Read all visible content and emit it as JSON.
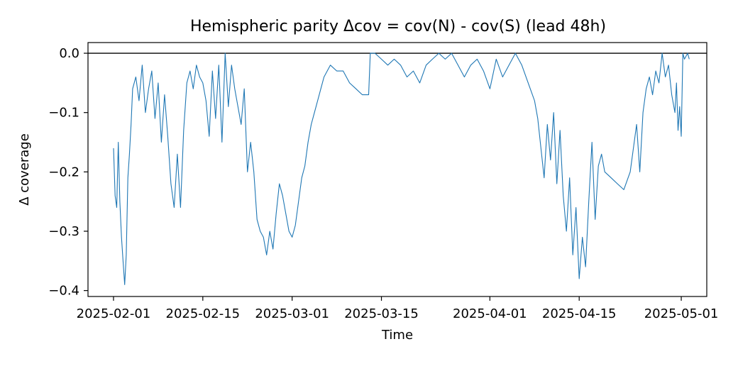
{
  "chart_data": {
    "type": "line",
    "title": "Hemispheric parity Δcov = cov(N) - cov(S)  (lead 48h)",
    "xlabel": "Time",
    "ylabel": "Δ coverage",
    "xlim": [
      "2025-01-28",
      "2025-05-05"
    ],
    "ylim": [
      -0.41,
      0.018
    ],
    "x_ticks": [
      {
        "date": "2025-02-01",
        "label": "2025-02-01"
      },
      {
        "date": "2025-02-15",
        "label": "2025-02-15"
      },
      {
        "date": "2025-03-01",
        "label": "2025-03-01"
      },
      {
        "date": "2025-03-15",
        "label": "2025-03-15"
      },
      {
        "date": "2025-04-01",
        "label": "2025-04-01"
      },
      {
        "date": "2025-04-15",
        "label": "2025-04-15"
      },
      {
        "date": "2025-05-01",
        "label": "2025-05-01"
      }
    ],
    "y_ticks": [
      {
        "value": 0.0,
        "label": "0.0"
      },
      {
        "value": -0.1,
        "label": "−0.1"
      },
      {
        "value": -0.2,
        "label": "−0.2"
      },
      {
        "value": -0.3,
        "label": "−0.3"
      },
      {
        "value": -0.4,
        "label": "−0.4"
      }
    ],
    "reference_line": {
      "y": 0.0,
      "color": "#000000"
    },
    "grid": false,
    "series": [
      {
        "color": "#1f77b4",
        "points": [
          [
            "2025-02-01T00:00",
            -0.16
          ],
          [
            "2025-02-01T06:00",
            -0.24
          ],
          [
            "2025-02-01T12:00",
            -0.26
          ],
          [
            "2025-02-01T18:00",
            -0.15
          ],
          [
            "2025-02-02T00:00",
            -0.25
          ],
          [
            "2025-02-02T06:00",
            -0.31
          ],
          [
            "2025-02-02T12:00",
            -0.35
          ],
          [
            "2025-02-02T18:00",
            -0.39
          ],
          [
            "2025-02-03T00:00",
            -0.34
          ],
          [
            "2025-02-03T06:00",
            -0.21
          ],
          [
            "2025-02-03T12:00",
            -0.17
          ],
          [
            "2025-02-03T18:00",
            -0.12
          ],
          [
            "2025-02-04T00:00",
            -0.06
          ],
          [
            "2025-02-04T12:00",
            -0.04
          ],
          [
            "2025-02-05T00:00",
            -0.08
          ],
          [
            "2025-02-05T12:00",
            -0.02
          ],
          [
            "2025-02-06T00:00",
            -0.1
          ],
          [
            "2025-02-06T12:00",
            -0.06
          ],
          [
            "2025-02-07T00:00",
            -0.03
          ],
          [
            "2025-02-07T12:00",
            -0.11
          ],
          [
            "2025-02-08T00:00",
            -0.05
          ],
          [
            "2025-02-08T12:00",
            -0.15
          ],
          [
            "2025-02-09T00:00",
            -0.07
          ],
          [
            "2025-02-09T12:00",
            -0.14
          ],
          [
            "2025-02-10T00:00",
            -0.22
          ],
          [
            "2025-02-10T12:00",
            -0.26
          ],
          [
            "2025-02-11T00:00",
            -0.17
          ],
          [
            "2025-02-11T12:00",
            -0.26
          ],
          [
            "2025-02-12T00:00",
            -0.13
          ],
          [
            "2025-02-12T12:00",
            -0.05
          ],
          [
            "2025-02-13T00:00",
            -0.03
          ],
          [
            "2025-02-13T12:00",
            -0.06
          ],
          [
            "2025-02-14T00:00",
            -0.02
          ],
          [
            "2025-02-14T12:00",
            -0.04
          ],
          [
            "2025-02-15T00:00",
            -0.05
          ],
          [
            "2025-02-15T12:00",
            -0.08
          ],
          [
            "2025-02-16T00:00",
            -0.14
          ],
          [
            "2025-02-16T12:00",
            -0.03
          ],
          [
            "2025-02-17T00:00",
            -0.11
          ],
          [
            "2025-02-17T12:00",
            -0.02
          ],
          [
            "2025-02-18T00:00",
            -0.15
          ],
          [
            "2025-02-18T12:00",
            -0.0
          ],
          [
            "2025-02-19T00:00",
            -0.09
          ],
          [
            "2025-02-19T12:00",
            -0.02
          ],
          [
            "2025-02-20T00:00",
            -0.06
          ],
          [
            "2025-02-20T12:00",
            -0.09
          ],
          [
            "2025-02-21T00:00",
            -0.12
          ],
          [
            "2025-02-21T12:00",
            -0.06
          ],
          [
            "2025-02-22T00:00",
            -0.2
          ],
          [
            "2025-02-22T12:00",
            -0.15
          ],
          [
            "2025-02-23T00:00",
            -0.2
          ],
          [
            "2025-02-23T12:00",
            -0.28
          ],
          [
            "2025-02-24T00:00",
            -0.3
          ],
          [
            "2025-02-24T12:00",
            -0.31
          ],
          [
            "2025-02-25T00:00",
            -0.34
          ],
          [
            "2025-02-25T12:00",
            -0.3
          ],
          [
            "2025-02-26T00:00",
            -0.33
          ],
          [
            "2025-02-26T12:00",
            -0.27
          ],
          [
            "2025-02-27T00:00",
            -0.22
          ],
          [
            "2025-02-27T12:00",
            -0.24
          ],
          [
            "2025-02-28T00:00",
            -0.27
          ],
          [
            "2025-02-28T12:00",
            -0.3
          ],
          [
            "2025-03-01T00:00",
            -0.31
          ],
          [
            "2025-03-01T12:00",
            -0.29
          ],
          [
            "2025-03-02T00:00",
            -0.25
          ],
          [
            "2025-03-02T12:00",
            -0.21
          ],
          [
            "2025-03-03T00:00",
            -0.19
          ],
          [
            "2025-03-03T12:00",
            -0.15
          ],
          [
            "2025-03-04T00:00",
            -0.12
          ],
          [
            "2025-03-04T12:00",
            -0.1
          ],
          [
            "2025-03-05T00:00",
            -0.08
          ],
          [
            "2025-03-05T12:00",
            -0.06
          ],
          [
            "2025-03-06T00:00",
            -0.04
          ],
          [
            "2025-03-07T00:00",
            -0.02
          ],
          [
            "2025-03-08T00:00",
            -0.03
          ],
          [
            "2025-03-09T00:00",
            -0.03
          ],
          [
            "2025-03-10T00:00",
            -0.05
          ],
          [
            "2025-03-11T00:00",
            -0.06
          ],
          [
            "2025-03-12T00:00",
            -0.07
          ],
          [
            "2025-03-13T00:00",
            -0.07
          ],
          [
            "2025-03-13T06:00",
            0.0
          ],
          [
            "2025-03-14T00:00",
            -0.0
          ],
          [
            "2025-03-15T00:00",
            -0.01
          ],
          [
            "2025-03-16T00:00",
            -0.02
          ],
          [
            "2025-03-17T00:00",
            -0.01
          ],
          [
            "2025-03-18T00:00",
            -0.02
          ],
          [
            "2025-03-19T00:00",
            -0.04
          ],
          [
            "2025-03-20T00:00",
            -0.03
          ],
          [
            "2025-03-21T00:00",
            -0.05
          ],
          [
            "2025-03-22T00:00",
            -0.02
          ],
          [
            "2025-03-23T00:00",
            -0.01
          ],
          [
            "2025-03-24T00:00",
            -0.0
          ],
          [
            "2025-03-25T00:00",
            -0.01
          ],
          [
            "2025-03-26T00:00",
            -0.0
          ],
          [
            "2025-03-27T00:00",
            -0.02
          ],
          [
            "2025-03-28T00:00",
            -0.04
          ],
          [
            "2025-03-29T00:00",
            -0.02
          ],
          [
            "2025-03-30T00:00",
            -0.01
          ],
          [
            "2025-03-31T00:00",
            -0.03
          ],
          [
            "2025-04-01T00:00",
            -0.06
          ],
          [
            "2025-04-02T00:00",
            -0.01
          ],
          [
            "2025-04-03T00:00",
            -0.04
          ],
          [
            "2025-04-04T00:00",
            -0.02
          ],
          [
            "2025-04-05T00:00",
            -0.0
          ],
          [
            "2025-04-06T00:00",
            -0.02
          ],
          [
            "2025-04-07T00:00",
            -0.05
          ],
          [
            "2025-04-08T00:00",
            -0.08
          ],
          [
            "2025-04-08T12:00",
            -0.11
          ],
          [
            "2025-04-09T00:00",
            -0.16
          ],
          [
            "2025-04-09T12:00",
            -0.21
          ],
          [
            "2025-04-10T00:00",
            -0.12
          ],
          [
            "2025-04-10T12:00",
            -0.18
          ],
          [
            "2025-04-11T00:00",
            -0.1
          ],
          [
            "2025-04-11T12:00",
            -0.22
          ],
          [
            "2025-04-12T00:00",
            -0.13
          ],
          [
            "2025-04-12T12:00",
            -0.24
          ],
          [
            "2025-04-13T00:00",
            -0.3
          ],
          [
            "2025-04-13T12:00",
            -0.21
          ],
          [
            "2025-04-14T00:00",
            -0.34
          ],
          [
            "2025-04-14T12:00",
            -0.26
          ],
          [
            "2025-04-15T00:00",
            -0.38
          ],
          [
            "2025-04-15T12:00",
            -0.31
          ],
          [
            "2025-04-16T00:00",
            -0.36
          ],
          [
            "2025-04-16T12:00",
            -0.25
          ],
          [
            "2025-04-17T00:00",
            -0.15
          ],
          [
            "2025-04-17T12:00",
            -0.28
          ],
          [
            "2025-04-18T00:00",
            -0.19
          ],
          [
            "2025-04-18T12:00",
            -0.17
          ],
          [
            "2025-04-19T00:00",
            -0.2
          ],
          [
            "2025-04-20T00:00",
            -0.21
          ],
          [
            "2025-04-21T00:00",
            -0.22
          ],
          [
            "2025-04-22T00:00",
            -0.23
          ],
          [
            "2025-04-23T00:00",
            -0.2
          ],
          [
            "2025-04-23T12:00",
            -0.16
          ],
          [
            "2025-04-24T00:00",
            -0.12
          ],
          [
            "2025-04-24T12:00",
            -0.2
          ],
          [
            "2025-04-25T00:00",
            -0.1
          ],
          [
            "2025-04-25T12:00",
            -0.06
          ],
          [
            "2025-04-26T00:00",
            -0.04
          ],
          [
            "2025-04-26T12:00",
            -0.07
          ],
          [
            "2025-04-27T00:00",
            -0.03
          ],
          [
            "2025-04-27T12:00",
            -0.05
          ],
          [
            "2025-04-28T00:00",
            -0.0
          ],
          [
            "2025-04-28T12:00",
            -0.04
          ],
          [
            "2025-04-29T00:00",
            -0.02
          ],
          [
            "2025-04-29T12:00",
            -0.07
          ],
          [
            "2025-04-30T00:00",
            -0.1
          ],
          [
            "2025-04-30T06:00",
            -0.05
          ],
          [
            "2025-04-30T12:00",
            -0.13
          ],
          [
            "2025-04-30T18:00",
            -0.09
          ],
          [
            "2025-05-01T00:00",
            -0.14
          ],
          [
            "2025-05-01T06:00",
            -0.0
          ],
          [
            "2025-05-01T12:00",
            -0.01
          ],
          [
            "2025-05-02T00:00",
            -0.0
          ],
          [
            "2025-05-02T06:00",
            -0.01
          ]
        ]
      }
    ]
  }
}
